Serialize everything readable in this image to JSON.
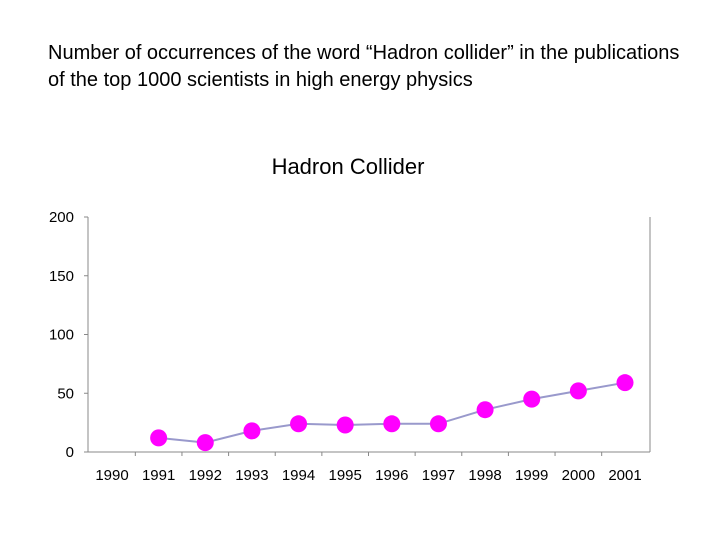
{
  "caption": "Number of occurrences of the word “Hadron collider” in the publications of the top 1000 scientists in high energy physics",
  "chart_data": {
    "type": "line",
    "title": "Hadron Collider",
    "xlabel": "",
    "ylabel": "",
    "categories": [
      "1990",
      "1991",
      "1992",
      "1993",
      "1994",
      "1995",
      "1996",
      "1997",
      "1998",
      "1999",
      "2000",
      "2001"
    ],
    "series": [
      {
        "values": [
          null,
          12,
          8,
          18,
          24,
          23,
          24,
          24,
          36,
          45,
          52,
          59
        ]
      }
    ],
    "ylim": [
      0,
      200
    ],
    "yticks": [
      "0",
      "50",
      "100",
      "150",
      "200"
    ],
    "grid": false,
    "legend": "none",
    "line_color": "#9999cc",
    "marker_color": "#ff00ff"
  }
}
